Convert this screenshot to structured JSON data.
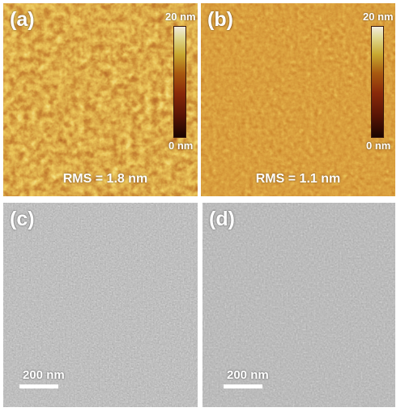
{
  "panels": {
    "a": {
      "label": "(a)",
      "rms": "RMS = 1.8 nm",
      "colorbar_max": "20 nm",
      "colorbar_min": "0 nm"
    },
    "b": {
      "label": "(b)",
      "rms": "RMS = 1.1 nm",
      "colorbar_max": "20 nm",
      "colorbar_min": "0 nm"
    },
    "c": {
      "label": "(c)",
      "scalebar": "200 nm"
    },
    "d": {
      "label": "(d)",
      "scalebar": "200 nm"
    }
  },
  "colors": {
    "afm_dark": "#1a0500",
    "afm_mid": "#8a3a08",
    "afm_light": "#d8c04a",
    "afm_peak": "#f0e8c8",
    "tem_gray": "#7a7a7a"
  }
}
